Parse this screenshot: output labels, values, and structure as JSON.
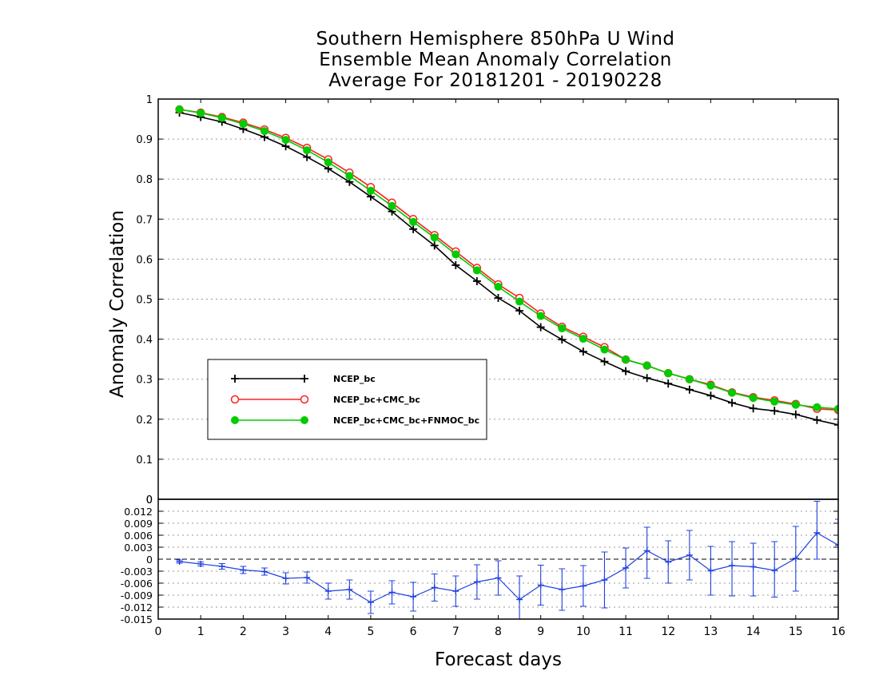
{
  "chart_data": [
    {
      "type": "line",
      "title": [
        "Southern Hemisphere 850hPa U Wind",
        "Ensemble Mean Anomaly Correlation",
        "Average For 20181201 - 20190228"
      ],
      "xlabel": "",
      "ylabel": "Anomaly Correlation",
      "xlim": [
        0,
        16
      ],
      "ylim": [
        0,
        1
      ],
      "yticks": [
        "0",
        "0.1",
        "0.2",
        "0.3",
        "0.4",
        "0.5",
        "0.6",
        "0.7",
        "0.8",
        "0.9",
        "1"
      ],
      "grid": true,
      "legend": "center-left",
      "x": [
        0.5,
        1,
        1.5,
        2,
        2.5,
        3,
        3.5,
        4,
        4.5,
        5,
        5.5,
        6,
        6.5,
        7,
        7.5,
        8,
        8.5,
        9,
        9.5,
        10,
        10.5,
        11,
        11.5,
        12,
        12.5,
        13,
        13.5,
        14,
        14.5,
        15,
        15.5,
        16
      ],
      "series": [
        {
          "name": "NCEP_bc",
          "color": "#000000",
          "marker": "plus",
          "values": [
            0.966,
            0.955,
            0.943,
            0.925,
            0.905,
            0.882,
            0.855,
            0.826,
            0.793,
            0.756,
            0.719,
            0.675,
            0.634,
            0.585,
            0.545,
            0.503,
            0.471,
            0.43,
            0.399,
            0.369,
            0.344,
            0.32,
            0.303,
            0.289,
            0.274,
            0.259,
            0.241,
            0.227,
            0.221,
            0.212,
            0.198,
            0.186
          ]
        },
        {
          "name": "NCEP_bc+CMC_bc",
          "color": "#ff2020",
          "marker": "open-circle",
          "values": [
            0.974,
            0.966,
            0.955,
            0.941,
            0.924,
            0.903,
            0.878,
            0.849,
            0.816,
            0.78,
            0.741,
            0.7,
            0.66,
            0.619,
            0.578,
            0.537,
            0.503,
            0.464,
            0.431,
            0.406,
            0.38,
            0.349,
            0.334,
            0.315,
            0.3,
            0.286,
            0.267,
            0.255,
            0.247,
            0.238,
            0.226,
            0.223
          ]
        },
        {
          "name": "NCEP_bc+CMC_bc+FNMOC_bc",
          "color": "#00cc00",
          "marker": "filled-circle",
          "values": [
            0.974,
            0.965,
            0.953,
            0.938,
            0.92,
            0.898,
            0.872,
            0.842,
            0.808,
            0.771,
            0.733,
            0.693,
            0.654,
            0.612,
            0.572,
            0.531,
            0.494,
            0.458,
            0.427,
            0.401,
            0.374,
            0.349,
            0.334,
            0.315,
            0.3,
            0.284,
            0.266,
            0.253,
            0.244,
            0.236,
            0.23,
            0.226
          ]
        }
      ]
    },
    {
      "type": "line",
      "title": "",
      "xlabel": "Forecast days",
      "ylabel": "",
      "xlim": [
        0,
        16
      ],
      "ylim": [
        -0.015,
        0.015
      ],
      "xticks": [
        "0",
        "1",
        "2",
        "3",
        "4",
        "5",
        "6",
        "7",
        "8",
        "9",
        "10",
        "11",
        "12",
        "13",
        "14",
        "15",
        "16"
      ],
      "yticks": [
        "-0.015",
        "-0.012",
        "-0.009",
        "-0.006",
        "-0.003",
        "0",
        "0.003",
        "0.006",
        "0.009",
        "0.012"
      ],
      "extra_label": "0",
      "grid": true,
      "series": [
        {
          "name": "",
          "color": "#2040e0",
          "marker": "plus-with-error-bars",
          "values": [
            -0.0006,
            -0.0012,
            -0.0018,
            -0.0027,
            -0.0031,
            -0.0048,
            -0.0046,
            -0.008,
            -0.0076,
            -0.0108,
            -0.0083,
            -0.0094,
            -0.0071,
            -0.008,
            -0.0057,
            -0.0047,
            -0.0101,
            -0.0065,
            -0.0076,
            -0.0067,
            -0.0052,
            -0.0022,
            0.0021,
            -0.0007,
            0.001,
            -0.0029,
            -0.0016,
            -0.0019,
            -0.0028,
            0.0002,
            0.0066,
            0.0035
          ],
          "error_low": [
            -0.001,
            -0.0017,
            -0.0025,
            -0.0036,
            -0.004,
            -0.0062,
            -0.006,
            -0.01,
            -0.01,
            -0.0136,
            -0.0112,
            -0.013,
            -0.0105,
            -0.0118,
            -0.01,
            -0.009,
            -0.016,
            -0.0115,
            -0.0128,
            -0.0118,
            -0.0122,
            -0.0072,
            -0.0048,
            -0.006,
            -0.0052,
            -0.009,
            -0.0092,
            -0.0092,
            -0.0095,
            -0.008,
            0.0,
            -0.003
          ],
          "error_high": [
            -0.0002,
            -0.0007,
            -0.0011,
            -0.0018,
            -0.0022,
            -0.0034,
            -0.0032,
            -0.006,
            -0.0052,
            -0.008,
            -0.0054,
            -0.0058,
            -0.0037,
            -0.0042,
            -0.0014,
            -0.0004,
            -0.0042,
            -0.0015,
            -0.0024,
            -0.0016,
            0.0018,
            0.0028,
            0.008,
            0.0046,
            0.0072,
            0.0032,
            0.0044,
            0.004,
            0.0044,
            0.0082,
            0.0145,
            0.01
          ]
        }
      ]
    }
  ]
}
